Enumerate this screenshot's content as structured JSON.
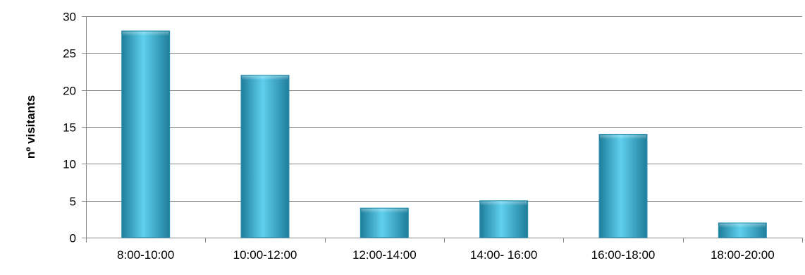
{
  "chart_data": {
    "type": "bar",
    "categories": [
      "8:00-10:00",
      "10:00-12:00",
      "12:00-14:00",
      "14:00- 16:00",
      "16:00-18:00",
      "18:00-20:00"
    ],
    "values": [
      28,
      22,
      4,
      5,
      14,
      2
    ],
    "xlabel": "",
    "ylabel": "nº visitants",
    "ylim": [
      0,
      30
    ],
    "yticks": [
      0,
      5,
      10,
      15,
      20,
      25,
      30
    ],
    "grid": true,
    "legend": "none",
    "colors": {
      "bar_top": "#5FD0EE",
      "bar_mid": "#3BB4D8",
      "bar_bottom": "#1E7D9A",
      "bar_edge": "#2A8FB0",
      "gridline": "#868686",
      "axis": "#868686"
    }
  }
}
